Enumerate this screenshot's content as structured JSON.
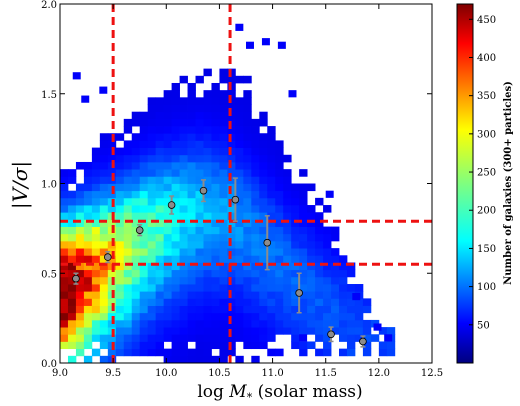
{
  "chart_data": {
    "type": "heatmap",
    "title": "",
    "xlabel_prefix": "log",
    "xlabel_var": "M",
    "xlabel_sub": "*",
    "xlabel_suffix": " (solar mass)",
    "ylabel_inner": "V/σ",
    "ylabel_bar": "|",
    "xlim": [
      9.0,
      12.5
    ],
    "ylim": [
      0.0,
      2.0
    ],
    "xticks": [
      9.0,
      9.5,
      10.0,
      10.5,
      11.0,
      11.5,
      12.0,
      12.5
    ],
    "xtick_labels": [
      "9.0",
      "9.5",
      "10.0",
      "10.5",
      "11.0",
      "11.5",
      "12.0",
      "12.5"
    ],
    "yticks": [
      0.0,
      0.5,
      1.0,
      1.5,
      2.0
    ],
    "ytick_labels": [
      "0.0",
      "0.5",
      "1.0",
      "1.5",
      "2.0"
    ],
    "colorbar": {
      "label": "Number of galaxies (300+ particles)",
      "min": 0,
      "max": 470,
      "ticks": [
        50,
        100,
        150,
        200,
        250,
        300,
        350,
        400,
        450
      ],
      "tick_labels": [
        "50",
        "100",
        "150",
        "200",
        "250",
        "300",
        "350",
        "400",
        "450"
      ]
    },
    "density_model": {
      "ridge_points": [
        [
          9.05,
          0.42
        ],
        [
          9.3,
          0.52
        ],
        [
          9.6,
          0.63
        ],
        [
          9.9,
          0.76
        ],
        [
          10.3,
          0.87
        ],
        [
          10.6,
          0.85
        ],
        [
          11.0,
          0.62
        ],
        [
          11.5,
          0.32
        ],
        [
          11.9,
          0.15
        ]
      ],
      "peak_count": 470
    },
    "binned_means": {
      "x": [
        9.15,
        9.45,
        9.75,
        10.05,
        10.35,
        10.65,
        10.95,
        11.25,
        11.55,
        11.85
      ],
      "y": [
        0.47,
        0.59,
        0.74,
        0.88,
        0.96,
        0.91,
        0.67,
        0.39,
        0.16,
        0.12
      ],
      "err": [
        0.03,
        0.03,
        0.03,
        0.05,
        0.06,
        0.12,
        0.15,
        0.11,
        0.04,
        0.03
      ]
    },
    "vertical_lines_x": [
      9.5,
      10.6
    ],
    "horizontal_lines_y": [
      0.55,
      0.79
    ],
    "reference_line_color": "#ee1111",
    "marker_color": "#8c8c8c",
    "background_color": "#ffffff"
  }
}
